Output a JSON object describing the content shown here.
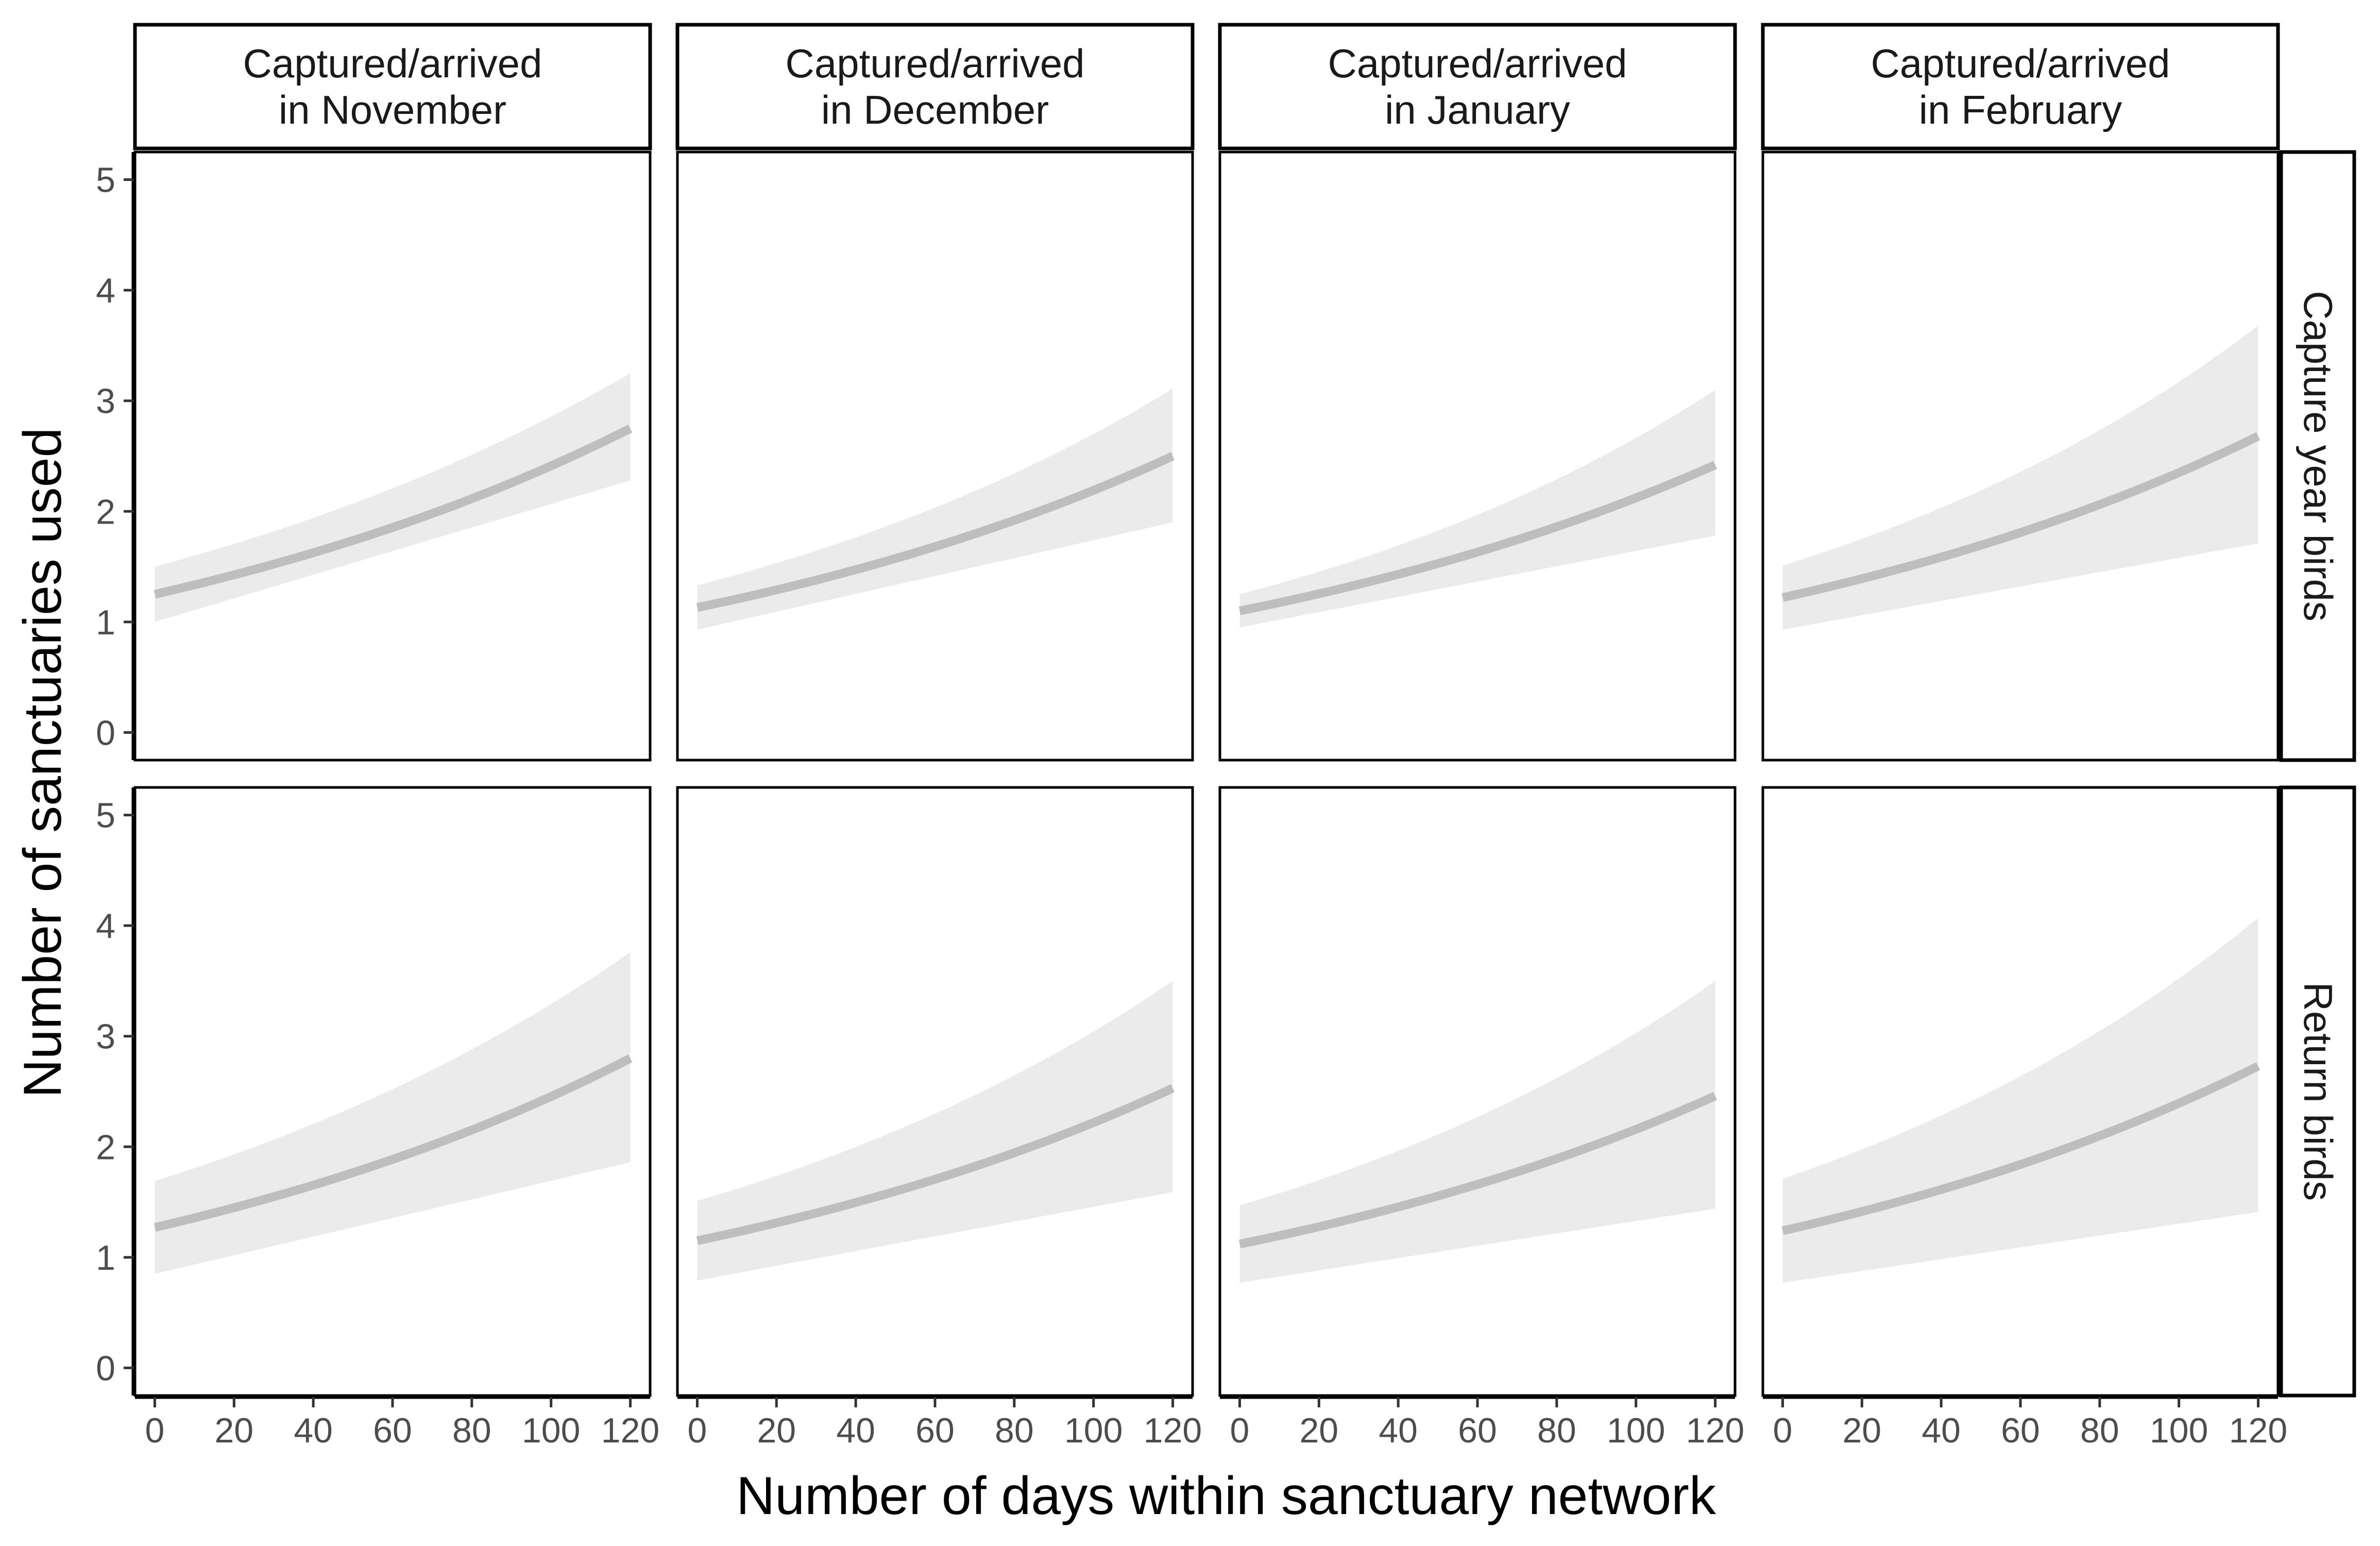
{
  "chart_data": {
    "type": "line",
    "title": "",
    "xlabel": "Number of days within sanctuary network",
    "ylabel": "Number of sanctuaries used",
    "xlim": [
      -5,
      125
    ],
    "ylim": [
      -0.25,
      5.25
    ],
    "x_ticks": [
      0,
      20,
      40,
      60,
      80,
      100,
      120
    ],
    "x_tick_labels": [
      "0",
      "20",
      "40",
      "60",
      "80",
      "100",
      "120"
    ],
    "y_ticks": [
      0,
      1,
      2,
      3,
      4,
      5
    ],
    "y_tick_labels": [
      "0",
      "1",
      "2",
      "3",
      "4",
      "5"
    ],
    "grid": false,
    "legend": "none",
    "colors": {
      "line": "#bebebe",
      "ribbon": "#ebebeb",
      "frame": "#000000",
      "tick_text": "#4d4d4d"
    },
    "columns": [
      "Captured/arrived\nin November",
      "Captured/arrived\nin December",
      "Captured/arrived\nin January",
      "Captured/arrived\nin February"
    ],
    "rows": [
      "Capture year birds",
      "Return birds"
    ],
    "panels": [
      {
        "row": 0,
        "col": 0,
        "x": [
          0,
          120
        ],
        "fit": [
          1.25,
          2.75
        ],
        "lower": [
          1.0,
          2.28
        ],
        "upper": [
          1.5,
          3.25
        ]
      },
      {
        "row": 0,
        "col": 1,
        "x": [
          0,
          120
        ],
        "fit": [
          1.13,
          2.5
        ],
        "lower": [
          0.93,
          1.9
        ],
        "upper": [
          1.33,
          3.11
        ]
      },
      {
        "row": 0,
        "col": 2,
        "x": [
          0,
          120
        ],
        "fit": [
          1.1,
          2.42
        ],
        "lower": [
          0.95,
          1.78
        ],
        "upper": [
          1.25,
          3.1
        ]
      },
      {
        "row": 0,
        "col": 3,
        "x": [
          0,
          120
        ],
        "fit": [
          1.22,
          2.68
        ],
        "lower": [
          0.93,
          1.71
        ],
        "upper": [
          1.51,
          3.68
        ]
      },
      {
        "row": 1,
        "col": 0,
        "x": [
          0,
          120
        ],
        "fit": [
          1.27,
          2.8
        ],
        "lower": [
          0.85,
          1.86
        ],
        "upper": [
          1.69,
          3.76
        ]
      },
      {
        "row": 1,
        "col": 1,
        "x": [
          0,
          120
        ],
        "fit": [
          1.15,
          2.53
        ],
        "lower": [
          0.79,
          1.59
        ],
        "upper": [
          1.51,
          3.5
        ]
      },
      {
        "row": 1,
        "col": 2,
        "x": [
          0,
          120
        ],
        "fit": [
          1.12,
          2.46
        ],
        "lower": [
          0.77,
          1.44
        ],
        "upper": [
          1.47,
          3.5
        ]
      },
      {
        "row": 1,
        "col": 3,
        "x": [
          0,
          120
        ],
        "fit": [
          1.24,
          2.73
        ],
        "lower": [
          0.77,
          1.41
        ],
        "upper": [
          1.71,
          4.07
        ]
      }
    ]
  }
}
